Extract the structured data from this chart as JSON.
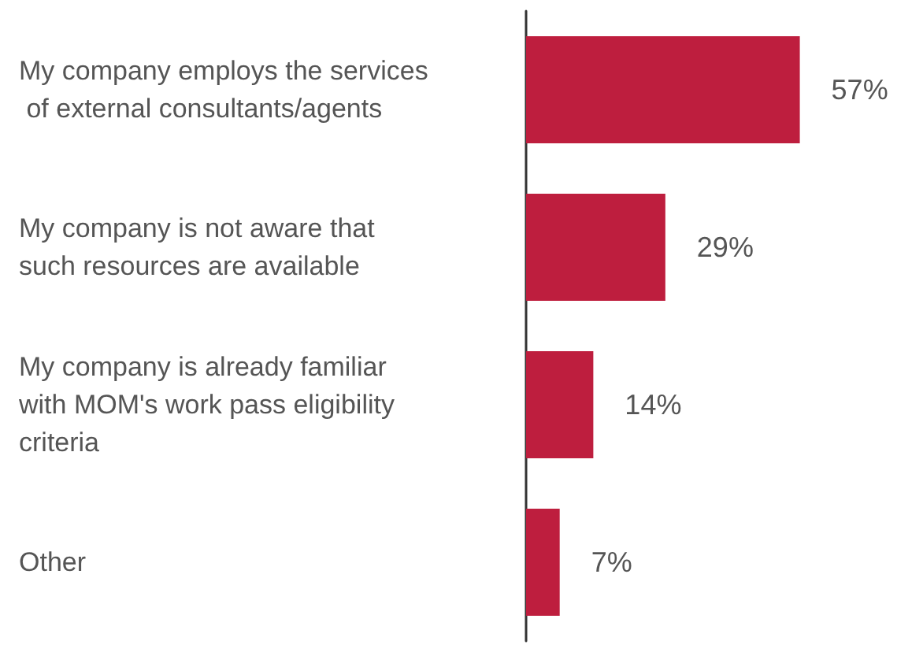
{
  "chart_data": {
    "type": "bar",
    "orientation": "horizontal",
    "tick_labels": "y",
    "categories": [
      "My company employs the services of external consultants/agents",
      "My company is not aware that such resources are available",
      "My company is already familiar with MOM's work pass eligibility criteria",
      "Other"
    ],
    "values": [
      57,
      29,
      14,
      7
    ],
    "value_labels": [
      "57%",
      "29%",
      "14%",
      "7%"
    ],
    "color": "#be1e3e"
  }
}
